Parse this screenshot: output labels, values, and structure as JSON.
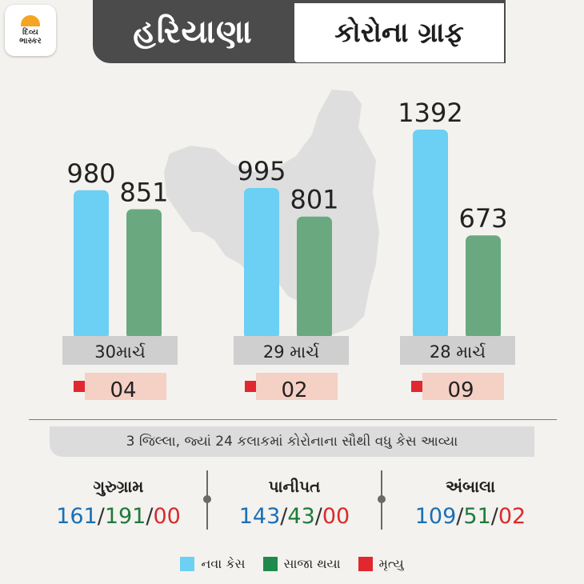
{
  "logo": {
    "line1": "દિવ્ય",
    "line2": "ભાસ્કર"
  },
  "header": {
    "state": "હરિયાણા",
    "title": "કોરોના ગ્રાફ"
  },
  "colors": {
    "new": "#6ccff4",
    "recovered": "#6aa97f",
    "death": "#e0282e",
    "date_label_bg": "#cfcfcf",
    "death_label_bg": "#f5d0c4",
    "map": "#dedede"
  },
  "chart_data": {
    "type": "bar",
    "categories": [
      "30માર્ચ",
      "29 માર્ચ",
      "28 માર્ચ"
    ],
    "series": [
      {
        "name": "નવા કેસ",
        "values": [
          980,
          995,
          1392
        ]
      },
      {
        "name": "સાજા થયા",
        "values": [
          851,
          801,
          673
        ]
      }
    ],
    "deaths": [
      "04",
      "02",
      "09"
    ],
    "legend": [
      "નવા કેસ",
      "સાજા થયા",
      "મૃત્યુ"
    ],
    "ylim": [
      0,
      1392
    ]
  },
  "districts_banner": "3 જિલ્લા, જ્યાં 24 કલાકમાં કોરોનાના સૌથી વધુ કેસ આવ્યા",
  "districts": [
    {
      "name": "ગુરુગ્રામ",
      "new": "161",
      "recovered": "191",
      "deaths": "00"
    },
    {
      "name": "પાનીપત",
      "new": "143",
      "recovered": "43",
      "deaths": "00"
    },
    {
      "name": "અંબાલા",
      "new": "109",
      "recovered": "51",
      "deaths": "02"
    }
  ],
  "slash": "/"
}
